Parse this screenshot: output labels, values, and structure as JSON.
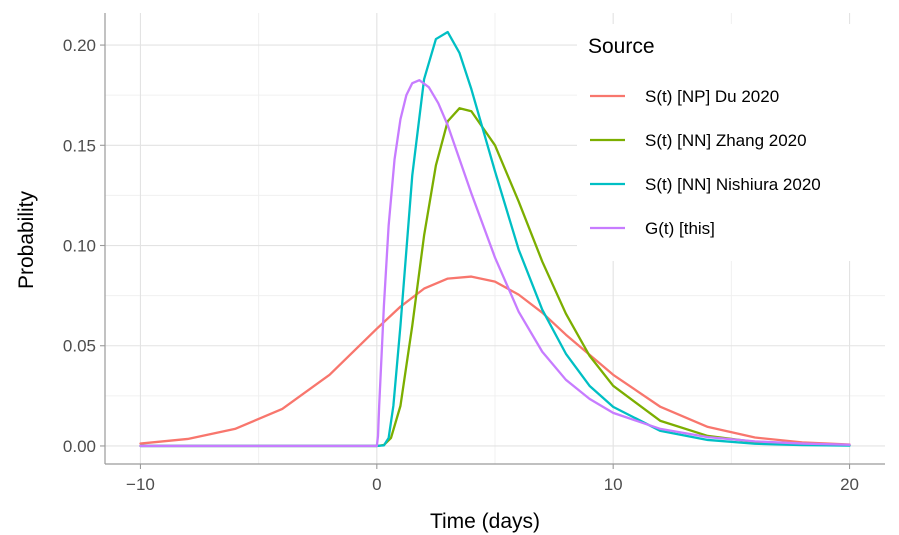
{
  "chart_data": {
    "type": "line",
    "xlabel": "Time (days)",
    "ylabel": "Probability",
    "xlim": [
      -11.5,
      21.5
    ],
    "ylim": [
      -0.009,
      0.216
    ],
    "xticks": [
      -10,
      0,
      10,
      20
    ],
    "xtick_labels": [
      "−10",
      "0",
      "10",
      "20"
    ],
    "yticks": [
      0.0,
      0.05,
      0.1,
      0.15,
      0.2
    ],
    "ytick_labels": [
      "0.00",
      "0.05",
      "0.10",
      "0.15",
      "0.20"
    ],
    "grid": true,
    "legend": {
      "title": "Source",
      "position": "top-right"
    },
    "series": [
      {
        "name": "S(t) [NP] Du 2020",
        "color": "#F8766D",
        "x": [
          -10,
          -8,
          -6,
          -4,
          -2,
          0,
          1,
          2,
          3,
          4,
          5,
          6,
          7,
          8,
          10,
          12,
          14,
          16,
          18,
          20
        ],
        "y": [
          0.0012,
          0.0035,
          0.0085,
          0.0185,
          0.0355,
          0.0585,
          0.0695,
          0.0785,
          0.0835,
          0.0845,
          0.082,
          0.0755,
          0.0665,
          0.0555,
          0.0355,
          0.0195,
          0.0095,
          0.0042,
          0.0018,
          0.0007
        ]
      },
      {
        "name": "S(t) [NN] Zhang 2020",
        "color": "#7CAE00",
        "x": [
          -10,
          0,
          0.3,
          0.6,
          1,
          1.5,
          2,
          2.5,
          3,
          3.5,
          4,
          5,
          6,
          7,
          8,
          9,
          10,
          12,
          14,
          16,
          18,
          20
        ],
        "y": [
          0,
          0,
          0.0005,
          0.004,
          0.02,
          0.06,
          0.105,
          0.14,
          0.162,
          0.1685,
          0.167,
          0.15,
          0.122,
          0.092,
          0.066,
          0.045,
          0.03,
          0.0125,
          0.005,
          0.002,
          0.0008,
          0.0003
        ]
      },
      {
        "name": "S(t) [NN] Nishiura 2020",
        "color": "#00BFC4",
        "x": [
          -10,
          0,
          0.3,
          0.5,
          0.7,
          1,
          1.5,
          2,
          2.5,
          3,
          3.5,
          4,
          5,
          6,
          7,
          8,
          9,
          10,
          12,
          14,
          16,
          18,
          20
        ],
        "y": [
          0,
          0,
          0.0003,
          0.004,
          0.02,
          0.06,
          0.135,
          0.183,
          0.203,
          0.2065,
          0.196,
          0.178,
          0.137,
          0.098,
          0.068,
          0.046,
          0.03,
          0.0195,
          0.0075,
          0.003,
          0.0011,
          0.0004,
          0.0002
        ]
      },
      {
        "name": "G(t) [this]",
        "color": "#C77CFF",
        "x": [
          -10,
          0,
          0.05,
          0.1,
          0.2,
          0.3,
          0.5,
          0.75,
          1,
          1.25,
          1.5,
          1.8,
          2.2,
          2.6,
          3,
          3.5,
          4,
          5,
          6,
          7,
          8,
          9,
          10,
          12,
          14,
          16,
          18,
          20
        ],
        "y": [
          0,
          0,
          0.005,
          0.02,
          0.045,
          0.07,
          0.11,
          0.143,
          0.163,
          0.175,
          0.181,
          0.1825,
          0.179,
          0.171,
          0.16,
          0.143,
          0.126,
          0.094,
          0.067,
          0.047,
          0.033,
          0.0235,
          0.0165,
          0.0085,
          0.0044,
          0.0023,
          0.0012,
          0.0006
        ]
      }
    ]
  }
}
